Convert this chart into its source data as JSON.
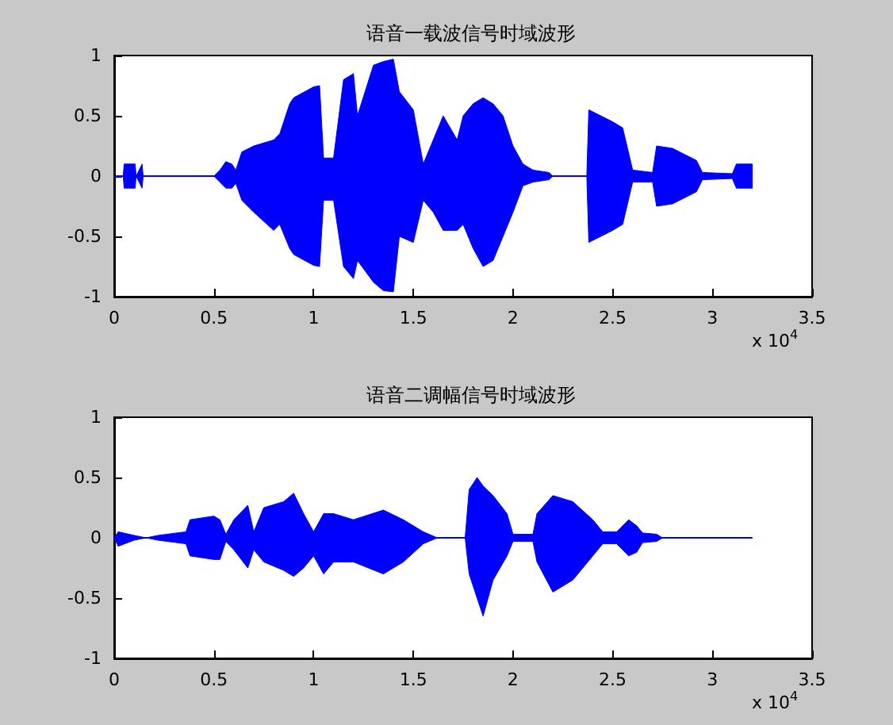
{
  "chart_data": [
    {
      "type": "line",
      "title": "语音一载波信号时域波形",
      "x": [
        0,
        0.045,
        0.05,
        0.105,
        0.11,
        0.14,
        0.145,
        0.5,
        0.53,
        0.56,
        0.59,
        0.61,
        0.64,
        0.7,
        0.8,
        0.83,
        0.88,
        0.9,
        1.0,
        1.03,
        1.05,
        1.1,
        1.15,
        1.2,
        1.22,
        1.3,
        1.35,
        1.4,
        1.43,
        1.5,
        1.55,
        1.6,
        1.65,
        1.72,
        1.75,
        1.8,
        1.85,
        1.9,
        1.95,
        2.0,
        2.05,
        2.1,
        2.18,
        2.2,
        2.37,
        2.38,
        2.5,
        2.55,
        2.6,
        2.7,
        2.72,
        2.8,
        2.92,
        2.95,
        3.1,
        3.12,
        3.2
      ],
      "series": [
        {
          "color": "#0000ff",
          "values": [
            0,
            0,
            0,
            0,
            0,
            0,
            0,
            0,
            0,
            0,
            0,
            0,
            0,
            0,
            0,
            0,
            0,
            0,
            0,
            0,
            0,
            0,
            0,
            0,
            0,
            0,
            0,
            0,
            0,
            0,
            0,
            0,
            0,
            0,
            0,
            0,
            0,
            0,
            0,
            0,
            0,
            0,
            0,
            0,
            0,
            0,
            0,
            0,
            0,
            0,
            0,
            0,
            0,
            0,
            0,
            0,
            0
          ],
          "upper": [
            0,
            0,
            0.1,
            0.1,
            0,
            0.1,
            0,
            0,
            0.05,
            0.12,
            0.1,
            0.05,
            0.2,
            0.25,
            0.3,
            0.35,
            0.6,
            0.65,
            0.74,
            0.75,
            0.15,
            0.15,
            0.8,
            0.85,
            0.5,
            0.92,
            0.95,
            0.97,
            0.7,
            0.55,
            0.1,
            0.3,
            0.5,
            0.3,
            0.5,
            0.6,
            0.65,
            0.6,
            0.5,
            0.25,
            0.1,
            0.05,
            0.03,
            0,
            0,
            0.55,
            0.45,
            0.4,
            0.05,
            0.03,
            0.25,
            0.23,
            0.13,
            0.03,
            0.02,
            0.1,
            0.1
          ],
          "lower": [
            0,
            0,
            -0.1,
            -0.1,
            0,
            -0.1,
            0,
            0,
            -0.05,
            -0.1,
            -0.1,
            -0.06,
            -0.2,
            -0.3,
            -0.45,
            -0.4,
            -0.6,
            -0.65,
            -0.74,
            -0.75,
            -0.2,
            -0.2,
            -0.75,
            -0.85,
            -0.7,
            -0.88,
            -0.95,
            -0.96,
            -0.5,
            -0.55,
            -0.2,
            -0.3,
            -0.45,
            -0.45,
            -0.4,
            -0.6,
            -0.75,
            -0.7,
            -0.5,
            -0.3,
            -0.08,
            -0.05,
            -0.03,
            0,
            0,
            -0.55,
            -0.45,
            -0.4,
            -0.05,
            -0.05,
            -0.25,
            -0.23,
            -0.13,
            -0.03,
            -0.02,
            -0.1,
            -0.1
          ]
        }
      ],
      "xlim": [
        0,
        3.5
      ],
      "xticks": [
        0,
        0.5,
        1,
        1.5,
        2,
        2.5,
        3,
        3.5
      ],
      "ylim": [
        -1,
        1
      ],
      "yticks": [
        -1,
        -0.5,
        0,
        0.5,
        1
      ],
      "annotations": [
        "x 10$^{4}$"
      ],
      "grid": false
    },
    {
      "type": "line",
      "title": "语音二调幅信号时域波形",
      "x": [
        0,
        0.02,
        0.1,
        0.16,
        0.22,
        0.36,
        0.38,
        0.5,
        0.53,
        0.56,
        0.6,
        0.67,
        0.7,
        0.75,
        0.85,
        0.9,
        0.95,
        1.0,
        1.05,
        1.1,
        1.2,
        1.35,
        1.45,
        1.55,
        1.62,
        1.76,
        1.78,
        1.82,
        1.85,
        1.9,
        1.97,
        2.0,
        2.1,
        2.12,
        2.2,
        2.3,
        2.4,
        2.45,
        2.52,
        2.58,
        2.62,
        2.65,
        2.72,
        2.75,
        3.2
      ],
      "series": [
        {
          "color": "#0000ff",
          "values": [
            0,
            0,
            0,
            0,
            0,
            0,
            0,
            0,
            0,
            0,
            0,
            0,
            0,
            0,
            0,
            0,
            0,
            0,
            0,
            0,
            0,
            0,
            0,
            0,
            0,
            0,
            0,
            0,
            0,
            0,
            0,
            0,
            0,
            0,
            0,
            0,
            0,
            0,
            0,
            0,
            0,
            0,
            0,
            0,
            0
          ],
          "upper": [
            0,
            0.05,
            0.02,
            0,
            0.02,
            0.05,
            0.15,
            0.18,
            0.15,
            0.03,
            0.15,
            0.27,
            0.05,
            0.25,
            0.3,
            0.37,
            0.2,
            0.05,
            0.2,
            0.2,
            0.15,
            0.23,
            0.15,
            0.05,
            0,
            0,
            0.4,
            0.5,
            0.43,
            0.35,
            0.2,
            0.03,
            0.03,
            0.2,
            0.35,
            0.3,
            0.15,
            0.05,
            0.05,
            0.15,
            0.1,
            0.04,
            0.03,
            0,
            0
          ],
          "lower": [
            0,
            -0.07,
            -0.02,
            0,
            -0.02,
            -0.05,
            -0.15,
            -0.18,
            -0.18,
            -0.03,
            -0.1,
            -0.25,
            -0.1,
            -0.2,
            -0.27,
            -0.32,
            -0.25,
            -0.15,
            -0.3,
            -0.2,
            -0.2,
            -0.3,
            -0.2,
            -0.05,
            0,
            0,
            -0.3,
            -0.5,
            -0.65,
            -0.35,
            -0.15,
            -0.03,
            -0.03,
            -0.2,
            -0.45,
            -0.35,
            -0.15,
            -0.05,
            -0.05,
            -0.15,
            -0.12,
            -0.04,
            -0.03,
            0,
            0
          ]
        }
      ],
      "xlim": [
        0,
        3.5
      ],
      "xticks": [
        0,
        0.5,
        1,
        1.5,
        2,
        2.5,
        3,
        3.5
      ],
      "ylim": [
        -1,
        1
      ],
      "yticks": [
        -1,
        -0.5,
        0,
        0.5,
        1
      ],
      "annotations": [
        "x 10$^{4}$"
      ],
      "grid": false
    }
  ]
}
